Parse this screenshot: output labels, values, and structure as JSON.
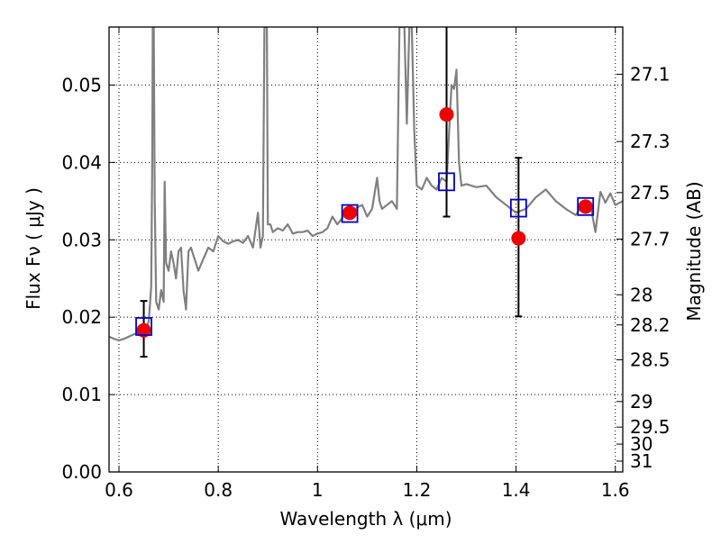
{
  "chart_data": {
    "type": "scatter",
    "xlabel": "Wavelength  λ (μm)",
    "ylabel": "Flux  Fν  ( μJy )",
    "ylabel_right": "Magnitude (AB)",
    "xlim": [
      0.58,
      1.615
    ],
    "ylim": [
      0.0,
      0.0575
    ],
    "x_ticks": [
      {
        "value": 0.6,
        "label": "0.6"
      },
      {
        "value": 0.8,
        "label": "0.8"
      },
      {
        "value": 1.0,
        "label": "1"
      },
      {
        "value": 1.2,
        "label": "1.2"
      },
      {
        "value": 1.4,
        "label": "1.4"
      },
      {
        "value": 1.6,
        "label": "1.6"
      }
    ],
    "y_ticks": [
      {
        "value": 0.0,
        "label": "0.00"
      },
      {
        "value": 0.01,
        "label": "0.01"
      },
      {
        "value": 0.02,
        "label": "0.02"
      },
      {
        "value": 0.03,
        "label": "0.03"
      },
      {
        "value": 0.04,
        "label": "0.04"
      },
      {
        "value": 0.05,
        "label": "0.05"
      }
    ],
    "right_ticks": [
      {
        "label": "27.1",
        "flux": 0.0514
      },
      {
        "label": "27.3",
        "flux": 0.0427
      },
      {
        "label": "27.5",
        "flux": 0.0361
      },
      {
        "label": "27.7",
        "flux": 0.0301
      },
      {
        "label": "28",
        "flux": 0.0229
      },
      {
        "label": "28.2",
        "flux": 0.019
      },
      {
        "label": "28.5",
        "flux": 0.0145
      },
      {
        "label": "29",
        "flux": 0.0091
      },
      {
        "label": "29.5",
        "flux": 0.0058
      },
      {
        "label": "30",
        "flux": 0.0036
      },
      {
        "label": "31",
        "flux": 0.0014
      }
    ],
    "grid": true,
    "colors": {
      "spectrum": "#808080",
      "observed": "#ee0000",
      "model": "#0000cc",
      "errorbar": "#000000",
      "grid": "#000000"
    },
    "series": [
      {
        "kind": "line",
        "x": [
          0.58,
          0.59,
          0.6,
          0.61,
          0.62,
          0.63,
          0.64,
          0.65,
          0.655,
          0.66,
          0.665,
          0.667,
          0.668,
          0.67,
          0.672,
          0.675,
          0.68,
          0.685,
          0.69,
          0.692,
          0.695,
          0.7,
          0.705,
          0.71,
          0.715,
          0.72,
          0.725,
          0.73,
          0.735,
          0.74,
          0.745,
          0.75,
          0.76,
          0.77,
          0.78,
          0.79,
          0.795,
          0.8,
          0.81,
          0.82,
          0.83,
          0.84,
          0.85,
          0.86,
          0.87,
          0.88,
          0.885,
          0.89,
          0.893,
          0.895,
          0.898,
          0.9,
          0.905,
          0.91,
          0.92,
          0.93,
          0.94,
          0.95,
          0.96,
          0.97,
          0.98,
          0.99,
          1.0,
          1.01,
          1.02,
          1.03,
          1.04,
          1.05,
          1.06,
          1.07,
          1.08,
          1.09,
          1.1,
          1.11,
          1.12,
          1.125,
          1.13,
          1.14,
          1.15,
          1.16,
          1.165,
          1.17,
          1.175,
          1.18,
          1.185,
          1.19,
          1.195,
          1.2,
          1.21,
          1.22,
          1.23,
          1.24,
          1.25,
          1.26,
          1.27,
          1.275,
          1.28,
          1.285,
          1.29,
          1.3,
          1.32,
          1.34,
          1.36,
          1.38,
          1.4,
          1.42,
          1.44,
          1.46,
          1.48,
          1.5,
          1.52,
          1.54,
          1.55,
          1.56,
          1.57,
          1.58,
          1.59,
          1.6,
          1.615
        ],
        "y": [
          0.0175,
          0.0172,
          0.017,
          0.0172,
          0.0175,
          0.0178,
          0.018,
          0.0182,
          0.0185,
          0.0195,
          0.024,
          0.04,
          0.0575,
          0.0575,
          0.035,
          0.022,
          0.021,
          0.0235,
          0.022,
          0.0375,
          0.027,
          0.026,
          0.0285,
          0.027,
          0.025,
          0.0285,
          0.029,
          0.0235,
          0.021,
          0.0285,
          0.029,
          0.028,
          0.026,
          0.0275,
          0.029,
          0.0285,
          0.0295,
          0.0305,
          0.0298,
          0.0295,
          0.0298,
          0.03,
          0.0296,
          0.0305,
          0.029,
          0.0335,
          0.029,
          0.0305,
          0.0575,
          0.0575,
          0.0575,
          0.032,
          0.032,
          0.031,
          0.0315,
          0.0312,
          0.032,
          0.0308,
          0.031,
          0.031,
          0.0312,
          0.0305,
          0.0308,
          0.031,
          0.0315,
          0.033,
          0.032,
          0.0328,
          0.034,
          0.0335,
          0.0342,
          0.0345,
          0.033,
          0.034,
          0.038,
          0.035,
          0.034,
          0.0345,
          0.035,
          0.034,
          0.0575,
          0.0575,
          0.0575,
          0.045,
          0.0575,
          0.0575,
          0.044,
          0.037,
          0.0365,
          0.038,
          0.037,
          0.0365,
          0.038,
          0.0375,
          0.05,
          0.0495,
          0.052,
          0.04,
          0.037,
          0.0372,
          0.0368,
          0.037,
          0.0355,
          0.0345,
          0.0335,
          0.034,
          0.0355,
          0.0365,
          0.035,
          0.034,
          0.0332,
          0.035,
          0.0345,
          0.031,
          0.0362,
          0.0348,
          0.036,
          0.0345,
          0.035
        ]
      },
      {
        "kind": "observed",
        "x": [
          0.65,
          1.26,
          1.405
        ],
        "y": [
          0.0183,
          0.0462,
          0.0302
        ],
        "yerr_low": [
          0.0149,
          0.033,
          0.0201
        ],
        "yerr_high": [
          0.0221,
          0.0575,
          0.0406
        ]
      },
      {
        "kind": "observed-in-box",
        "x": [
          1.065,
          1.54
        ],
        "y": [
          0.0335,
          0.0343
        ]
      },
      {
        "kind": "model",
        "x": [
          0.65,
          1.065,
          1.26,
          1.405,
          1.54
        ],
        "y": [
          0.0188,
          0.0334,
          0.0375,
          0.0341,
          0.0343
        ]
      }
    ]
  }
}
